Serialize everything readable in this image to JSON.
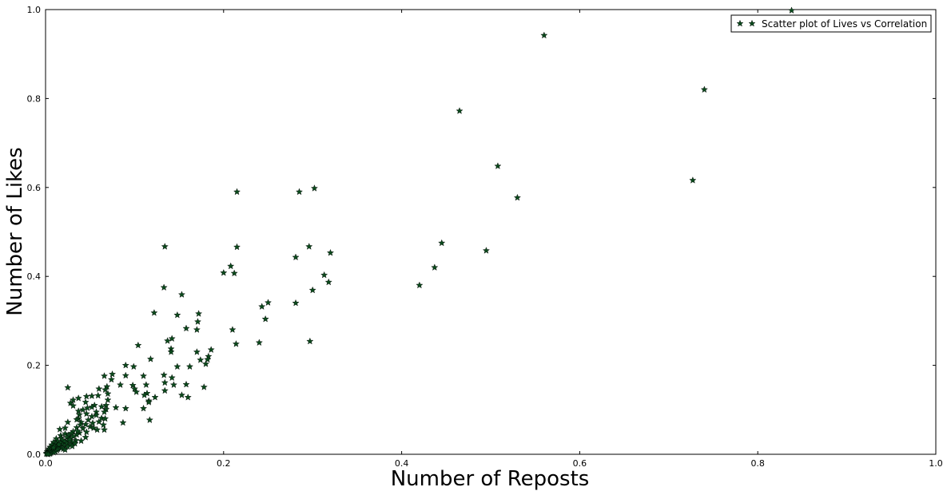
{
  "chart_data": {
    "type": "scatter",
    "xlabel": "Number of Reposts",
    "ylabel": "Number of Likes",
    "xlim": [
      0.0,
      1.0
    ],
    "ylim": [
      0.0,
      1.0
    ],
    "x_ticks": [
      "0.0",
      "0.2",
      "0.4",
      "0.6",
      "0.8",
      "1.0"
    ],
    "y_ticks": [
      "0.0",
      "0.2",
      "0.4",
      "0.6",
      "0.8",
      "1.0"
    ],
    "grid": false,
    "legend_position": "top-right",
    "marker": "star",
    "marker_color": "#0b4a1c",
    "series": [
      {
        "name": "Scatter plot of Lives vs Correlation",
        "points": [
          [
            0.838,
            0.998
          ],
          [
            0.56,
            0.942
          ],
          [
            0.74,
            0.82
          ],
          [
            0.465,
            0.772
          ],
          [
            0.727,
            0.616
          ],
          [
            0.508,
            0.648
          ],
          [
            0.53,
            0.577
          ],
          [
            0.445,
            0.475
          ],
          [
            0.495,
            0.458
          ],
          [
            0.437,
            0.42
          ],
          [
            0.42,
            0.38
          ],
          [
            0.215,
            0.59
          ],
          [
            0.285,
            0.59
          ],
          [
            0.302,
            0.598
          ],
          [
            0.134,
            0.467
          ],
          [
            0.215,
            0.466
          ],
          [
            0.296,
            0.467
          ],
          [
            0.32,
            0.453
          ],
          [
            0.281,
            0.443
          ],
          [
            0.208,
            0.423
          ],
          [
            0.212,
            0.407
          ],
          [
            0.2,
            0.408
          ],
          [
            0.313,
            0.403
          ],
          [
            0.318,
            0.387
          ],
          [
            0.133,
            0.375
          ],
          [
            0.3,
            0.369
          ],
          [
            0.153,
            0.359
          ],
          [
            0.25,
            0.341
          ],
          [
            0.243,
            0.332
          ],
          [
            0.281,
            0.34
          ],
          [
            0.122,
            0.318
          ],
          [
            0.148,
            0.313
          ],
          [
            0.172,
            0.316
          ],
          [
            0.247,
            0.304
          ],
          [
            0.171,
            0.298
          ],
          [
            0.158,
            0.283
          ],
          [
            0.17,
            0.28
          ],
          [
            0.21,
            0.28
          ],
          [
            0.142,
            0.26
          ],
          [
            0.137,
            0.255
          ],
          [
            0.214,
            0.248
          ],
          [
            0.24,
            0.251
          ],
          [
            0.297,
            0.254
          ],
          [
            0.104,
            0.245
          ],
          [
            0.141,
            0.237
          ],
          [
            0.141,
            0.23
          ],
          [
            0.17,
            0.23
          ],
          [
            0.186,
            0.235
          ],
          [
            0.183,
            0.22
          ],
          [
            0.174,
            0.212
          ],
          [
            0.182,
            0.213
          ],
          [
            0.118,
            0.214
          ],
          [
            0.18,
            0.203
          ],
          [
            0.09,
            0.2
          ],
          [
            0.099,
            0.197
          ],
          [
            0.162,
            0.197
          ],
          [
            0.148,
            0.197
          ],
          [
            0.11,
            0.176
          ],
          [
            0.09,
            0.177
          ],
          [
            0.133,
            0.178
          ],
          [
            0.142,
            0.172
          ],
          [
            0.075,
            0.18
          ],
          [
            0.066,
            0.176
          ],
          [
            0.074,
            0.168
          ],
          [
            0.134,
            0.161
          ],
          [
            0.158,
            0.157
          ],
          [
            0.144,
            0.156
          ],
          [
            0.113,
            0.156
          ],
          [
            0.098,
            0.155
          ],
          [
            0.069,
            0.152
          ],
          [
            0.084,
            0.156
          ],
          [
            0.178,
            0.151
          ],
          [
            0.025,
            0.15
          ],
          [
            0.1,
            0.147
          ],
          [
            0.067,
            0.145
          ],
          [
            0.06,
            0.147
          ],
          [
            0.134,
            0.143
          ],
          [
            0.114,
            0.137
          ],
          [
            0.102,
            0.14
          ],
          [
            0.153,
            0.133
          ],
          [
            0.111,
            0.133
          ],
          [
            0.07,
            0.136
          ],
          [
            0.059,
            0.132
          ],
          [
            0.052,
            0.131
          ],
          [
            0.046,
            0.13
          ],
          [
            0.123,
            0.128
          ],
          [
            0.16,
            0.128
          ],
          [
            0.037,
            0.126
          ],
          [
            0.031,
            0.122
          ],
          [
            0.07,
            0.122
          ],
          [
            0.116,
            0.12
          ],
          [
            0.116,
            0.117
          ],
          [
            0.045,
            0.117
          ],
          [
            0.028,
            0.115
          ],
          [
            0.031,
            0.109
          ],
          [
            0.055,
            0.11
          ],
          [
            0.052,
            0.106
          ],
          [
            0.063,
            0.107
          ],
          [
            0.068,
            0.11
          ],
          [
            0.079,
            0.105
          ],
          [
            0.11,
            0.103
          ],
          [
            0.047,
            0.104
          ],
          [
            0.042,
            0.1
          ],
          [
            0.037,
            0.097
          ],
          [
            0.068,
            0.101
          ],
          [
            0.057,
            0.095
          ],
          [
            0.09,
            0.103
          ],
          [
            0.066,
            0.095
          ],
          [
            0.046,
            0.091
          ],
          [
            0.057,
            0.088
          ],
          [
            0.038,
            0.089
          ],
          [
            0.052,
            0.085
          ],
          [
            0.063,
            0.081
          ],
          [
            0.037,
            0.08
          ],
          [
            0.067,
            0.08
          ],
          [
            0.117,
            0.077
          ],
          [
            0.087,
            0.071
          ],
          [
            0.035,
            0.078
          ],
          [
            0.048,
            0.077
          ],
          [
            0.04,
            0.072
          ],
          [
            0.025,
            0.072
          ],
          [
            0.06,
            0.073
          ],
          [
            0.053,
            0.07
          ],
          [
            0.045,
            0.067
          ],
          [
            0.039,
            0.066
          ],
          [
            0.065,
            0.066
          ],
          [
            0.05,
            0.062
          ],
          [
            0.035,
            0.06
          ],
          [
            0.054,
            0.059
          ],
          [
            0.042,
            0.058
          ],
          [
            0.022,
            0.059
          ],
          [
            0.016,
            0.056
          ],
          [
            0.058,
            0.055
          ],
          [
            0.066,
            0.055
          ],
          [
            0.031,
            0.051
          ],
          [
            0.046,
            0.05
          ],
          [
            0.038,
            0.048
          ],
          [
            0.029,
            0.047
          ],
          [
            0.022,
            0.046
          ],
          [
            0.035,
            0.044
          ],
          [
            0.026,
            0.043
          ],
          [
            0.017,
            0.042
          ],
          [
            0.031,
            0.04
          ],
          [
            0.024,
            0.038
          ],
          [
            0.018,
            0.036
          ],
          [
            0.012,
            0.035
          ],
          [
            0.028,
            0.035
          ],
          [
            0.019,
            0.032
          ],
          [
            0.034,
            0.031
          ],
          [
            0.025,
            0.03
          ],
          [
            0.014,
            0.029
          ],
          [
            0.021,
            0.028
          ],
          [
            0.03,
            0.027
          ],
          [
            0.009,
            0.027
          ],
          [
            0.017,
            0.025
          ],
          [
            0.024,
            0.024
          ],
          [
            0.012,
            0.023
          ],
          [
            0.019,
            0.022
          ],
          [
            0.028,
            0.021
          ],
          [
            0.007,
            0.021
          ],
          [
            0.014,
            0.02
          ],
          [
            0.021,
            0.019
          ],
          [
            0.01,
            0.018
          ],
          [
            0.016,
            0.017
          ],
          [
            0.025,
            0.017
          ],
          [
            0.005,
            0.016
          ],
          [
            0.012,
            0.015
          ],
          [
            0.018,
            0.014
          ],
          [
            0.008,
            0.013
          ],
          [
            0.014,
            0.012
          ],
          [
            0.004,
            0.012
          ],
          [
            0.01,
            0.011
          ],
          [
            0.006,
            0.01
          ],
          [
            0.013,
            0.009
          ],
          [
            0.003,
            0.009
          ],
          [
            0.008,
            0.008
          ],
          [
            0.005,
            0.007
          ],
          [
            0.011,
            0.006
          ],
          [
            0.002,
            0.006
          ],
          [
            0.007,
            0.005
          ],
          [
            0.004,
            0.004
          ],
          [
            0.009,
            0.004
          ],
          [
            0.002,
            0.003
          ],
          [
            0.006,
            0.003
          ],
          [
            0.003,
            0.002
          ],
          [
            0.001,
            0.002
          ],
          [
            0.005,
            0.001
          ],
          [
            0.002,
            0.001
          ],
          [
            0.001,
            0.001
          ],
          [
            0.003,
            0.0
          ],
          [
            0.02,
            0.012
          ],
          [
            0.03,
            0.018
          ],
          [
            0.04,
            0.03
          ],
          [
            0.045,
            0.038
          ],
          [
            0.015,
            0.022
          ],
          [
            0.022,
            0.01
          ],
          [
            0.033,
            0.024
          ],
          [
            0.009,
            0.015
          ],
          [
            0.036,
            0.052
          ],
          [
            0.027,
            0.033
          ]
        ]
      }
    ]
  }
}
